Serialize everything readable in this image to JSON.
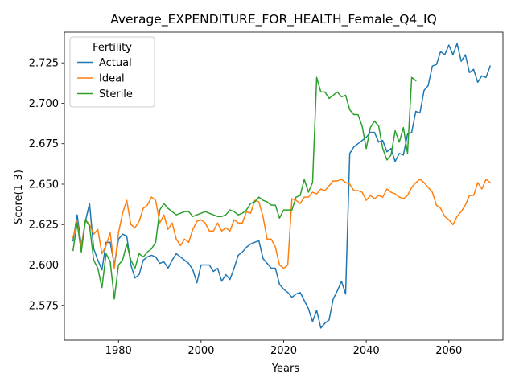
{
  "chart_data": {
    "type": "line",
    "title": "Average_EXPENDITURE_FOR_HEALTH_Female_Q4_IQ",
    "xlabel": "Years",
    "ylabel": "Score(1-3)",
    "xlim": [
      1966.9,
      2073.1
    ],
    "ylim": [
      2.5535,
      2.744
    ],
    "xticks": [
      1980,
      2000,
      2020,
      2040,
      2060
    ],
    "yticks": [
      2.575,
      2.6,
      2.625,
      2.65,
      2.675,
      2.7,
      2.725
    ],
    "xtick_labels": [
      "1980",
      "2000",
      "2020",
      "2040",
      "2060"
    ],
    "ytick_labels": [
      "2.575",
      "2.600",
      "2.625",
      "2.650",
      "2.675",
      "2.700",
      "2.725"
    ],
    "legend": {
      "title": "Fertility",
      "placement": "top-left"
    },
    "grid": false,
    "series": [
      {
        "name": "Actual",
        "color": "#1f77b4",
        "x": [
          1969,
          1970,
          1971,
          1972,
          1973,
          1974,
          1975,
          1976,
          1977,
          1978,
          1979,
          1980,
          1981,
          1982,
          1983,
          1984,
          1985,
          1986,
          1987,
          1988,
          1989,
          1990,
          1991,
          1992,
          1993,
          1994,
          1995,
          1996,
          1997,
          1998,
          1999,
          2000,
          2001,
          2002,
          2003,
          2004,
          2005,
          2006,
          2007,
          2008,
          2009,
          2010,
          2011,
          2012,
          2013,
          2014,
          2015,
          2016,
          2017,
          2018,
          2019,
          2020,
          2021,
          2022,
          2023,
          2024,
          2025,
          2026,
          2027,
          2028,
          2029,
          2030,
          2031,
          2032,
          2033,
          2034,
          2035,
          2036,
          2037,
          2038,
          2039,
          2040,
          2041,
          2042,
          2043,
          2044,
          2045,
          2046,
          2047,
          2048,
          2049,
          2050,
          2051,
          2052,
          2053,
          2054,
          2055,
          2056,
          2057,
          2058,
          2059,
          2060,
          2061,
          2062,
          2063,
          2064,
          2065,
          2066,
          2067,
          2068,
          2069,
          2070
        ],
        "y": [
          2.615,
          2.631,
          2.612,
          2.627,
          2.638,
          2.61,
          2.603,
          2.597,
          2.614,
          2.614,
          2.6,
          2.616,
          2.619,
          2.618,
          2.6,
          2.592,
          2.594,
          2.603,
          2.605,
          2.606,
          2.605,
          2.601,
          2.602,
          2.598,
          2.603,
          2.607,
          2.605,
          2.603,
          2.601,
          2.597,
          2.589,
          2.6,
          2.6,
          2.6,
          2.596,
          2.598,
          2.59,
          2.594,
          2.591,
          2.598,
          2.606,
          2.608,
          2.611,
          2.613,
          2.614,
          2.615,
          2.604,
          2.601,
          2.598,
          2.598,
          2.588,
          2.585,
          2.583,
          2.58,
          2.582,
          2.583,
          2.578,
          2.573,
          2.565,
          2.572,
          2.561,
          2.564,
          2.566,
          2.579,
          2.584,
          2.59,
          2.582,
          2.669,
          2.673,
          2.675,
          2.677,
          2.679,
          2.682,
          2.682,
          2.676,
          2.677,
          2.67,
          2.672,
          2.664,
          2.669,
          2.668,
          2.681,
          2.682,
          2.695,
          2.694,
          2.708,
          2.711,
          2.723,
          2.724,
          2.732,
          2.73,
          2.736,
          2.73,
          2.737,
          2.726,
          2.73,
          2.719,
          2.721,
          2.713,
          2.717,
          2.716,
          2.723
        ]
      },
      {
        "name": "Ideal",
        "color": "#ff7f0e",
        "x": [
          1969,
          1970,
          1971,
          1972,
          1973,
          1974,
          1975,
          1976,
          1977,
          1978,
          1979,
          1980,
          1981,
          1982,
          1983,
          1984,
          1985,
          1986,
          1987,
          1988,
          1989,
          1990,
          1991,
          1992,
          1993,
          1994,
          1995,
          1996,
          1997,
          1998,
          1999,
          2000,
          2001,
          2002,
          2003,
          2004,
          2005,
          2006,
          2007,
          2008,
          2009,
          2010,
          2011,
          2012,
          2013,
          2014,
          2015,
          2016,
          2017,
          2018,
          2019,
          2020,
          2021,
          2022,
          2023,
          2024,
          2025,
          2026,
          2027,
          2028,
          2029,
          2030,
          2031,
          2032,
          2033,
          2034,
          2035,
          2036,
          2037,
          2038,
          2039,
          2040,
          2041,
          2042,
          2043,
          2044,
          2045,
          2046,
          2047,
          2048,
          2049,
          2050,
          2051,
          2052,
          2053,
          2054,
          2055,
          2056,
          2057,
          2058,
          2059,
          2060,
          2061,
          2062,
          2063,
          2064,
          2065,
          2066,
          2067,
          2068,
          2069,
          2070
        ],
        "y": [
          2.617,
          2.627,
          2.611,
          2.628,
          2.625,
          2.619,
          2.622,
          2.607,
          2.612,
          2.62,
          2.598,
          2.62,
          2.632,
          2.64,
          2.625,
          2.623,
          2.627,
          2.635,
          2.637,
          2.642,
          2.64,
          2.626,
          2.631,
          2.622,
          2.626,
          2.616,
          2.612,
          2.616,
          2.614,
          2.622,
          2.627,
          2.628,
          2.626,
          2.621,
          2.621,
          2.626,
          2.621,
          2.623,
          2.621,
          2.628,
          2.626,
          2.626,
          2.633,
          2.632,
          2.64,
          2.639,
          2.63,
          2.616,
          2.616,
          2.611,
          2.6,
          2.598,
          2.6,
          2.641,
          2.64,
          2.638,
          2.642,
          2.642,
          2.645,
          2.644,
          2.647,
          2.646,
          2.649,
          2.652,
          2.652,
          2.653,
          2.651,
          2.65,
          2.646,
          2.646,
          2.645,
          2.64,
          2.643,
          2.641,
          2.643,
          2.642,
          2.647,
          2.645,
          2.644,
          2.642,
          2.641,
          2.643,
          2.648,
          2.651,
          2.653,
          2.651,
          2.648,
          2.645,
          2.637,
          2.635,
          2.63,
          2.628,
          2.625,
          2.63,
          2.633,
          2.637,
          2.643,
          2.643,
          2.651,
          2.647,
          2.653,
          2.651
        ]
      },
      {
        "name": "Sterile",
        "color": "#2ca02c",
        "x": [
          1969,
          1970,
          1971,
          1972,
          1973,
          1974,
          1975,
          1976,
          1977,
          1978,
          1979,
          1980,
          1981,
          1982,
          1983,
          1984,
          1985,
          1986,
          1987,
          1988,
          1989,
          1990,
          1991,
          1992,
          1993,
          1994,
          1995,
          1996,
          1997,
          1998,
          1999,
          2000,
          2001,
          2002,
          2003,
          2004,
          2005,
          2006,
          2007,
          2008,
          2009,
          2010,
          2011,
          2012,
          2013,
          2014,
          2015,
          2016,
          2017,
          2018,
          2019,
          2020,
          2021,
          2022,
          2023,
          2024,
          2025,
          2026,
          2027,
          2028,
          2029,
          2030,
          2031,
          2032,
          2033,
          2034,
          2035,
          2036,
          2037,
          2038,
          2039,
          2040,
          2041,
          2042,
          2043,
          2044,
          2045,
          2046,
          2047,
          2048,
          2049,
          2050,
          2051,
          2052
        ],
        "y": [
          2.609,
          2.626,
          2.608,
          2.628,
          2.624,
          2.603,
          2.598,
          2.586,
          2.607,
          2.602,
          2.579,
          2.6,
          2.603,
          2.613,
          2.603,
          2.598,
          2.607,
          2.605,
          2.608,
          2.61,
          2.614,
          2.634,
          2.638,
          2.635,
          2.633,
          2.631,
          2.632,
          2.633,
          2.633,
          2.63,
          2.631,
          2.632,
          2.633,
          2.632,
          2.631,
          2.63,
          2.63,
          2.631,
          2.634,
          2.633,
          2.631,
          2.632,
          2.634,
          2.638,
          2.639,
          2.642,
          2.64,
          2.639,
          2.637,
          2.637,
          2.629,
          2.634,
          2.634,
          2.634,
          2.642,
          2.643,
          2.653,
          2.645,
          2.651,
          2.716,
          2.707,
          2.707,
          2.703,
          2.705,
          2.707,
          2.704,
          2.705,
          2.696,
          2.693,
          2.693,
          2.686,
          2.672,
          2.685,
          2.689,
          2.686,
          2.672,
          2.665,
          2.668,
          2.683,
          2.676,
          2.685,
          2.669,
          2.716,
          2.714
        ]
      }
    ]
  }
}
